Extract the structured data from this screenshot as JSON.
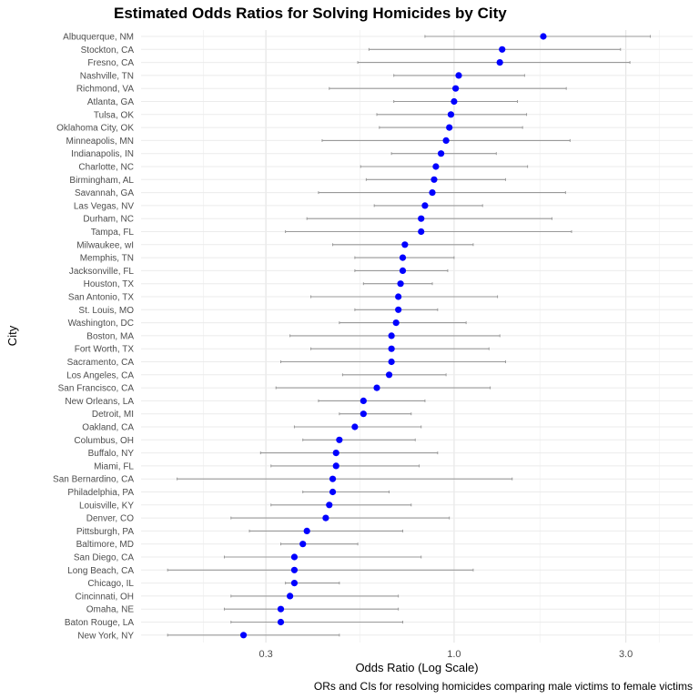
{
  "chart_data": {
    "type": "scatter",
    "title": "Estimated Odds Ratios for Solving Homicides by City",
    "xlabel": "Odds Ratio (Log Scale)",
    "ylabel": "City",
    "caption": "ORs and CIs for resolving homicides comparing male victims to female victims",
    "x_scale": "log",
    "xlim": [
      0.135,
      4.6
    ],
    "x_ticks": [
      0.3,
      1.0,
      3.0
    ],
    "x_tick_labels": [
      "0.3",
      "1.0",
      "3.0"
    ],
    "grid": true,
    "point_color": "#0000ff",
    "errorbar_color": "#999999",
    "cities": [
      "Albuquerque, NM",
      "Stockton, CA",
      "Fresno, CA",
      "Nashville, TN",
      "Richmond, VA",
      "Atlanta, GA",
      "Tulsa, OK",
      "Oklahoma City, OK",
      "Minneapolis, MN",
      "Indianapolis, IN",
      "Charlotte, NC",
      "Birmingham, AL",
      "Savannah, GA",
      "Las Vegas, NV",
      "Durham, NC",
      "Tampa, FL",
      "Milwaukee, wI",
      "Memphis, TN",
      "Jacksonville, FL",
      "Houston, TX",
      "San Antonio, TX",
      "St. Louis, MO",
      "Washington, DC",
      "Boston, MA",
      "Fort Worth, TX",
      "Sacramento, CA",
      "Los Angeles, CA",
      "San Francisco, CA",
      "New Orleans, LA",
      "Detroit, MI",
      "Oakland, CA",
      "Columbus, OH",
      "Buffalo, NY",
      "Miami, FL",
      "San Bernardino, CA",
      "Philadelphia, PA",
      "Louisville, KY",
      "Denver, CO",
      "Pittsburgh, PA",
      "Baltimore, MD",
      "San Diego, CA",
      "Long Beach, CA",
      "Chicago, IL",
      "Cincinnati, OH",
      "Omaha, NE",
      "Baton Rouge, LA",
      "New York, NY"
    ],
    "or": [
      1.77,
      1.36,
      1.34,
      1.03,
      1.01,
      1.0,
      0.98,
      0.97,
      0.95,
      0.92,
      0.89,
      0.88,
      0.87,
      0.83,
      0.81,
      0.81,
      0.73,
      0.72,
      0.72,
      0.71,
      0.7,
      0.7,
      0.69,
      0.67,
      0.67,
      0.67,
      0.66,
      0.61,
      0.56,
      0.56,
      0.53,
      0.48,
      0.47,
      0.47,
      0.46,
      0.46,
      0.45,
      0.44,
      0.39,
      0.38,
      0.36,
      0.36,
      0.36,
      0.35,
      0.33,
      0.33,
      0.26
    ],
    "lower": [
      0.83,
      0.58,
      0.54,
      0.68,
      0.45,
      0.68,
      0.61,
      0.62,
      0.43,
      0.67,
      0.55,
      0.57,
      0.42,
      0.6,
      0.39,
      0.34,
      0.46,
      0.53,
      0.53,
      0.56,
      0.4,
      0.53,
      0.48,
      0.35,
      0.4,
      0.33,
      0.49,
      0.32,
      0.42,
      0.48,
      0.36,
      0.38,
      0.29,
      0.31,
      0.17,
      0.38,
      0.31,
      0.24,
      0.27,
      0.33,
      0.23,
      0.16,
      0.34,
      0.24,
      0.23,
      0.24,
      0.16
    ],
    "upper": [
      3.51,
      2.9,
      3.08,
      1.57,
      2.05,
      1.5,
      1.59,
      1.55,
      2.1,
      1.31,
      1.6,
      1.39,
      2.04,
      1.2,
      1.87,
      2.12,
      1.13,
      1.0,
      0.96,
      0.87,
      1.32,
      0.9,
      1.08,
      1.34,
      1.25,
      1.39,
      0.95,
      1.26,
      0.83,
      0.76,
      0.81,
      0.78,
      0.9,
      0.8,
      1.45,
      0.66,
      0.76,
      0.97,
      0.72,
      0.54,
      0.81,
      1.13,
      0.48,
      0.7,
      0.7,
      0.72,
      0.48
    ]
  }
}
